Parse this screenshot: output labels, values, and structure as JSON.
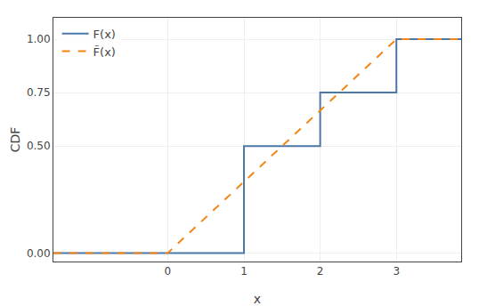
{
  "chart_data": {
    "type": "line",
    "x_label": "x",
    "y_label": "CDF",
    "xlim": [
      -1.5,
      3.85
    ],
    "ylim": [
      -0.04,
      1.1
    ],
    "xticks": [
      0,
      1,
      2,
      3
    ],
    "yticks": [
      {
        "value": 0.0,
        "label": "0.00"
      },
      {
        "value": 0.5,
        "label": "0.50"
      },
      0.75,
      {
        "value": 1.0,
        "label": "1.00"
      }
    ],
    "grid": true,
    "legend": "upper left",
    "series": [
      {
        "name": "F(x)",
        "color": "#4c78a8",
        "line_style": "solid",
        "x": [
          -1.5,
          1.0,
          1.0,
          2.0,
          2.0,
          3.0,
          3.0,
          3.85
        ],
        "values": [
          0.0,
          0.0,
          0.5,
          0.5,
          0.75,
          0.75,
          1.0,
          1.0
        ]
      },
      {
        "name": "F̃(x)",
        "color": "#f58518",
        "line_style": "dashed",
        "x": [
          -1.5,
          0.0,
          1.0,
          2.0,
          3.0,
          3.85
        ],
        "values": [
          0.0,
          0.0,
          0.3333,
          0.6667,
          1.0,
          1.0
        ]
      }
    ]
  }
}
